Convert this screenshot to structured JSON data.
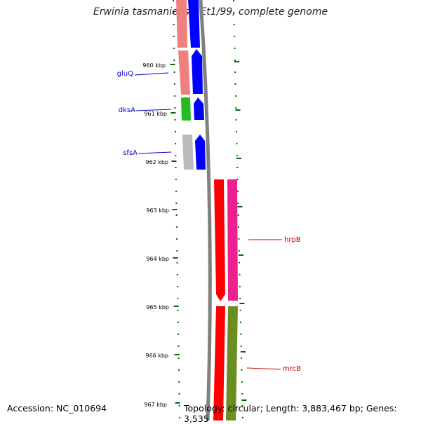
{
  "title": "Erwinia tasmaniensis Et1/99, complete genome",
  "footer": {
    "accession": "Accession: NC_010694",
    "summary": "Topology: circular; Length: 3,883,467 bp; Genes: 3,535"
  },
  "ticks": [
    {
      "label": "960 kbp",
      "pos": 960
    },
    {
      "label": "961 kbp",
      "pos": 961
    },
    {
      "label": "962 kbp",
      "pos": 962
    },
    {
      "label": "963 kbp",
      "pos": 963
    },
    {
      "label": "964 kbp",
      "pos": 964
    },
    {
      "label": "965 kbp",
      "pos": 965
    },
    {
      "label": "966 kbp",
      "pos": 966
    },
    {
      "label": "967 kbp",
      "pos": 967
    }
  ],
  "gene_labels": [
    {
      "name": "gluQ",
      "color": "#0000cc",
      "side": "left"
    },
    {
      "name": "dksA",
      "color": "#0000cc",
      "side": "left"
    },
    {
      "name": "sfsA",
      "color": "#0000cc",
      "side": "left"
    },
    {
      "name": "hrpB",
      "color": "#cc0000",
      "side": "right"
    },
    {
      "name": "mrcB",
      "color": "#cc0000",
      "side": "right"
    }
  ],
  "colors": {
    "forward_strand": "#0000ff",
    "reverse_strand": "#ff0000",
    "pink": "#ee1f8f",
    "olive": "#6b8e23",
    "salmon": "#f08080",
    "green": "#22bb22",
    "gray": "#bbbbbb",
    "backbone": "#808080",
    "tick": "#006400"
  }
}
